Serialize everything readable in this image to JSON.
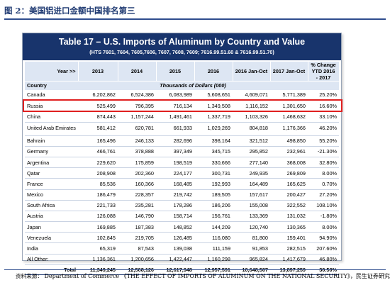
{
  "figure": {
    "caption": "图 2：美国铝进口金额中国排名第三"
  },
  "table": {
    "title": "Table 17 – U.S. Imports of Aluminum by Country and Value",
    "subtitle": "(HTS 7601, 7604, 7605,7606, 7607, 7608, 7609; 7616.99.51.60 & 7616.99.51.70)",
    "year_label": "Year >>",
    "country_label": "Country",
    "units_label": "Thousands of Dollars (000)",
    "columns": [
      "2013",
      "2014",
      "2015",
      "2016",
      "2016 Jan-Oct",
      "2017 Jan-Oct",
      "% Change YTD 2016 - 2017"
    ],
    "rows": [
      {
        "country": "Canada",
        "values": [
          "6,202,862",
          "6,524,386",
          "6,083,989",
          "5,608,651",
          "4,609,071",
          "5,771,389",
          "25.20%"
        ]
      },
      {
        "country": "Russia",
        "values": [
          "525,499",
          "796,395",
          "716,134",
          "1,349,508",
          "1,116,152",
          "1,301,650",
          "16.60%"
        ]
      },
      {
        "country": "China",
        "values": [
          "874,443",
          "1,157,244",
          "1,491,461",
          "1,337,719",
          "1,103,326",
          "1,468,632",
          "33.10%"
        ]
      },
      {
        "country": "United Arab Emirates",
        "values": [
          "581,412",
          "620,781",
          "661,933",
          "1,029,269",
          "804,818",
          "1,176,366",
          "46.20%"
        ]
      },
      {
        "country": "Bahrain",
        "values": [
          "165,496",
          "246,133",
          "282,696",
          "398,164",
          "321,512",
          "498,850",
          "55.20%"
        ]
      },
      {
        "country": "Germany",
        "values": [
          "466,761",
          "378,888",
          "397,349",
          "345,715",
          "295,852",
          "232,961",
          "-21.30%"
        ]
      },
      {
        "country": "Argentina",
        "values": [
          "229,620",
          "175,859",
          "198,519",
          "330,666",
          "277,140",
          "368,008",
          "32.80%"
        ]
      },
      {
        "country": "Qatar",
        "values": [
          "208,908",
          "202,360",
          "224,177",
          "300,731",
          "249,935",
          "269,809",
          "8.00%"
        ]
      },
      {
        "country": "France",
        "values": [
          "85,536",
          "160,366",
          "168,485",
          "192,993",
          "164,489",
          "165,625",
          "0.70%"
        ]
      },
      {
        "country": "Mexico",
        "values": [
          "186,479",
          "228,357",
          "219,742",
          "189,505",
          "157,617",
          "200,427",
          "27.20%"
        ]
      },
      {
        "country": "South Africa",
        "values": [
          "221,733",
          "235,281",
          "178,286",
          "186,206",
          "155,008",
          "322,552",
          "108.10%"
        ]
      },
      {
        "country": "Austria",
        "values": [
          "126,088",
          "146,790",
          "158,714",
          "156,761",
          "133,369",
          "131,032",
          "-1.80%"
        ]
      },
      {
        "country": "Japan",
        "values": [
          "169,885",
          "187,383",
          "148,852",
          "144,209",
          "120,740",
          "130,365",
          "8.00%"
        ]
      },
      {
        "country": "Venezuela",
        "values": [
          "102,845",
          "219,705",
          "126,485",
          "116,080",
          "81,800",
          "159,401",
          "94.90%"
        ]
      },
      {
        "country": "India",
        "values": [
          "65,319",
          "87,543",
          "139,038",
          "111,159",
          "91,853",
          "282,515",
          "207.60%"
        ]
      },
      {
        "country": "All Other:",
        "values": [
          "1,136,361",
          "1,200,656",
          "1,422,447",
          "1,160,298",
          "965,824",
          "1,417,679",
          "46.80%"
        ]
      }
    ],
    "total": {
      "label": "Total",
      "values": [
        "11,349,245",
        "12,568,126",
        "12,617,948",
        "12,957,591",
        "10,648,507",
        "13,897,259",
        "30.50%"
      ]
    },
    "highlight_color": "#e02020"
  },
  "source": {
    "label": "资料来源：",
    "text": "Department of Commerce 《THE EFFECT OF IMPORTS OF ALUMINUM ON THE NATIONAL SECURITY》，民生证券研究院"
  }
}
